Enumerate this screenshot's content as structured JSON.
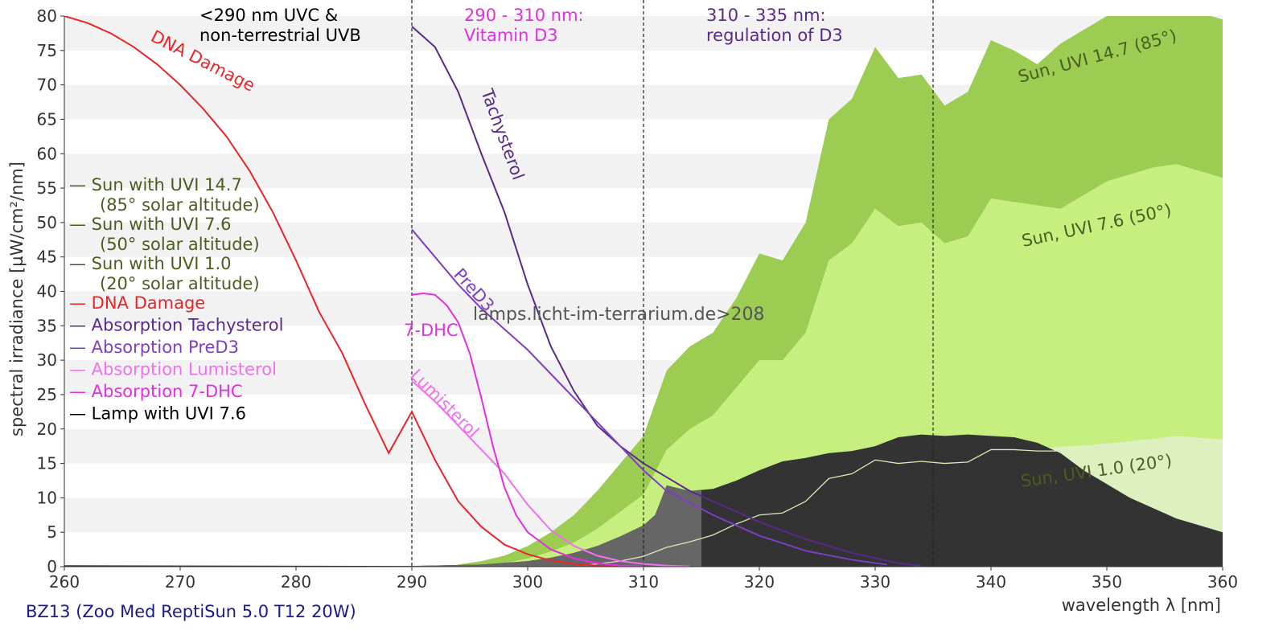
{
  "footer_title": "BZ13 (Zoo Med ReptiSun 5.0 T12 20W)",
  "watermark": "lamps.licht-im-terrarium.de>208",
  "colors": {
    "sun_147": "#9ccc52",
    "sun_76": "#c6ef80",
    "sun_10": "#dcf0c0",
    "lamp": "#333333",
    "lamp_in_uvb": "#666666",
    "dna": "#e8262a",
    "tachysterol": "#5a2a8a",
    "pred3": "#7d3fc4",
    "lumisterol": "#f070f0",
    "dhc7": "#e030e0",
    "sun_legend_text": "#4a5e20",
    "uvi_line": "#dde8b8",
    "grid_band": "#f2f2f2"
  },
  "regions": [
    {
      "text1": "<290 nm UVC &",
      "text2": "non-terrestrial UVB",
      "color": "#000000"
    },
    {
      "text1": "290 - 310 nm:",
      "text2": "Vitamin D3",
      "color": "#e030e0"
    },
    {
      "text1": "310 - 335 nm:",
      "text2": "regulation of D3",
      "color": "#5a2a8a"
    }
  ],
  "curve_labels": {
    "dna": "DNA Damage",
    "tachysterol": "Tachysterol",
    "pred3": "PreD3",
    "dhc7": "7-DHC",
    "lumisterol": "Lumisterol",
    "sun_147": "Sun, UVI 14.7 (85°)",
    "sun_76": "Sun, UVI 7.6 (50°)",
    "sun_10": "Sun, UVI 1.0 (20°)"
  },
  "legend": [
    {
      "marker": "—",
      "text": "Sun with UVI 14.7",
      "sub": "(85° solar altitude)",
      "color": "#4a5e20"
    },
    {
      "marker": "—",
      "text": "Sun with UVI 7.6",
      "sub": "(50° solar altitude)",
      "color": "#4a5e20"
    },
    {
      "marker": "—",
      "text": "Sun with UVI 1.0",
      "sub": "(20° solar altitude)",
      "color": "#4a5e20"
    },
    {
      "marker": "—",
      "text": "DNA Damage",
      "color": "#e8262a"
    },
    {
      "marker": "—",
      "text": "Absorption Tachysterol",
      "color": "#5a2a8a"
    },
    {
      "marker": "—",
      "text": "Absorption PreD3",
      "color": "#7d3fc4"
    },
    {
      "marker": "—",
      "text": "Absorption Lumisterol",
      "color": "#f070f0"
    },
    {
      "marker": "—",
      "text": "Absorption 7-DHC",
      "color": "#e030e0"
    },
    {
      "marker": "—",
      "text": "Lamp with UVI 7.6",
      "color": "#000000"
    }
  ],
  "chart_data": {
    "type": "area",
    "xlabel": "wavelength λ [nm]",
    "ylabel": "spectral irradiance [µW/cm²/nm]",
    "xlim": [
      260,
      360
    ],
    "ylim": [
      0,
      80
    ],
    "xticks": [
      260,
      270,
      280,
      290,
      300,
      310,
      320,
      330,
      340,
      350,
      360
    ],
    "yticks": [
      0,
      5,
      10,
      15,
      20,
      25,
      30,
      35,
      40,
      45,
      50,
      55,
      60,
      65,
      70,
      75,
      80
    ],
    "region_boundaries": [
      290,
      310,
      335
    ],
    "series": [
      {
        "name": "Sun with UVI 14.7",
        "kind": "area",
        "x": [
          294,
          296,
          298,
          300,
          302,
          304,
          306,
          308,
          310,
          312,
          314,
          316,
          318,
          320,
          322,
          324,
          326,
          328,
          330,
          332,
          334,
          336,
          338,
          340,
          342,
          344,
          346,
          348,
          350,
          352,
          354,
          356,
          358,
          360
        ],
        "y": [
          0.3,
          0.8,
          1.6,
          3.0,
          5.0,
          7.5,
          11,
          15,
          19,
          28.5,
          32,
          34,
          39,
          45.5,
          44.5,
          50,
          65,
          68,
          75.5,
          71,
          71.5,
          67,
          69,
          76.5,
          75,
          73,
          76,
          78,
          80,
          81.5,
          83,
          81.5,
          80.5,
          79.5
        ]
      },
      {
        "name": "Sun with UVI 7.6",
        "kind": "area",
        "x": [
          296,
          298,
          300,
          302,
          304,
          306,
          308,
          310,
          312,
          314,
          316,
          318,
          320,
          322,
          324,
          326,
          328,
          330,
          332,
          334,
          336,
          338,
          340,
          342,
          344,
          346,
          348,
          350,
          352,
          354,
          356,
          358,
          360
        ],
        "y": [
          0.1,
          0.5,
          1.2,
          2.2,
          3.5,
          5.5,
          8,
          10.5,
          17,
          20,
          22,
          26,
          30,
          30,
          34,
          44.5,
          47,
          52,
          49.5,
          50,
          47,
          48,
          53.5,
          53,
          52.5,
          52,
          54,
          56,
          57,
          58,
          58.5,
          57.5,
          56.5
        ]
      },
      {
        "name": "Sun with UVI 1.0",
        "kind": "area",
        "x": [
          300,
          304,
          308,
          312,
          316,
          320,
          324,
          328,
          332,
          336,
          340,
          344,
          348,
          352,
          356,
          360
        ],
        "y": [
          0.05,
          0.4,
          1.3,
          2.8,
          4.5,
          7,
          9.5,
          13,
          15.5,
          15.2,
          17,
          17.2,
          17.6,
          18.2,
          19,
          18.5
        ]
      },
      {
        "name": "Lamp with UVI 7.6",
        "kind": "area",
        "x": [
          260,
          290,
          296,
          300,
          302,
          304,
          306,
          308,
          310,
          311,
          312,
          314,
          316,
          318,
          320,
          322,
          324,
          326,
          328,
          330,
          332,
          334,
          336,
          338,
          340,
          342,
          344,
          346,
          348,
          350,
          352,
          354,
          356,
          358,
          360
        ],
        "y": [
          0.2,
          0.1,
          0.3,
          0.8,
          1.3,
          2.0,
          3.0,
          4.4,
          6.0,
          7.5,
          11.8,
          11.0,
          11.3,
          12.5,
          14,
          15.3,
          15.8,
          16.5,
          16.8,
          17.5,
          18.8,
          19.2,
          19.0,
          19.2,
          19.0,
          18.8,
          18.0,
          16.5,
          14,
          12,
          10,
          8.5,
          7,
          6,
          5
        ]
      },
      {
        "name": "DNA Damage",
        "kind": "line",
        "x": [
          260,
          262,
          264,
          266,
          268,
          270,
          272,
          274,
          276,
          278,
          280,
          282,
          284,
          286,
          288,
          290,
          292,
          294,
          296,
          298,
          300,
          302,
          304,
          306,
          308
        ],
        "y": [
          80,
          79,
          77.5,
          75.5,
          73,
          70,
          66.5,
          62.5,
          57.5,
          51.5,
          44.5,
          37,
          31,
          23.5,
          16.5,
          22.5,
          15.5,
          9.5,
          5.8,
          3.2,
          1.8,
          0.9,
          0.4,
          0.15,
          0.05
        ]
      },
      {
        "name": "Absorption Tachysterol",
        "kind": "line",
        "x": [
          290,
          292,
          294,
          296,
          298,
          300,
          302,
          304,
          306,
          308,
          310,
          312,
          314,
          316,
          318,
          320,
          324,
          328,
          332,
          334
        ],
        "y": [
          78.5,
          75.5,
          69,
          60,
          51.5,
          41,
          32,
          25.5,
          20.5,
          17.5,
          15,
          13,
          11,
          9.5,
          8,
          6.5,
          4.0,
          2.0,
          0.5,
          0.1
        ]
      },
      {
        "name": "Absorption PreD3",
        "kind": "line",
        "x": [
          290,
          292,
          294,
          296,
          298,
          300,
          302,
          304,
          306,
          308,
          310,
          312,
          316,
          320,
          324,
          328,
          331
        ],
        "y": [
          49,
          45,
          41,
          37.5,
          34.5,
          31.5,
          28,
          24.5,
          21,
          17.5,
          14,
          11,
          7.5,
          4.5,
          2.3,
          1.0,
          0.3
        ]
      },
      {
        "name": "Absorption Lumisterol",
        "kind": "line",
        "x": [
          290,
          292,
          294,
          296,
          298,
          300,
          302,
          304,
          306,
          308,
          310,
          312,
          314
        ],
        "y": [
          27,
          24,
          20.5,
          17,
          13.5,
          9,
          5.3,
          3.0,
          1.6,
          0.8,
          0.4,
          0.15,
          0.05
        ]
      },
      {
        "name": "Absorption 7-DHC",
        "kind": "line",
        "x": [
          290,
          291,
          292,
          293,
          294,
          295,
          296,
          297,
          298,
          299,
          300,
          302,
          304,
          306,
          308,
          310
        ],
        "y": [
          39.5,
          39.7,
          39.5,
          38,
          35.5,
          31,
          24.5,
          17.5,
          11.5,
          7.5,
          5.0,
          2.5,
          1.2,
          0.5,
          0.15,
          0.05
        ]
      },
      {
        "name": "UVI weighted Sun 1.0",
        "kind": "line",
        "x": [
          305,
          308,
          310,
          312,
          314,
          316,
          318,
          320,
          322,
          324,
          326,
          328,
          330,
          332,
          334,
          336,
          338,
          340,
          342,
          344,
          346
        ],
        "y": [
          0.2,
          0.8,
          1.5,
          2.8,
          3.6,
          4.6,
          6.2,
          7.5,
          7.8,
          9.5,
          12.8,
          13.5,
          15.5,
          15.0,
          15.3,
          15.0,
          15.2,
          17,
          17,
          16.8,
          16.8
        ]
      }
    ]
  }
}
